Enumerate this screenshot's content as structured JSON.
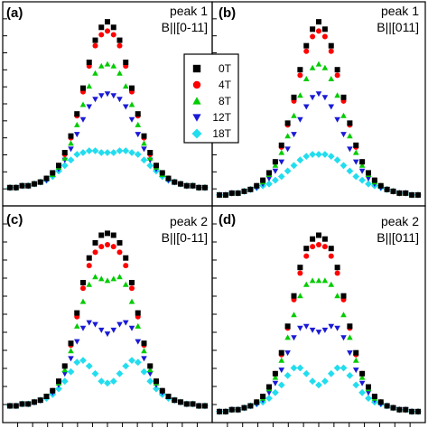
{
  "chart_data": {
    "type": "scatter",
    "layout": "2x2 panels with shared legend",
    "legend": {
      "placement": "center-top",
      "entries": [
        "0T",
        "4T",
        "8T",
        "12T",
        "18T"
      ]
    },
    "series_style": [
      {
        "name": "0T",
        "color": "#000000",
        "marker": "square"
      },
      {
        "name": "4T",
        "color": "#ff0000",
        "marker": "circle"
      },
      {
        "name": "8T",
        "color": "#00cc00",
        "marker": "triangle-up"
      },
      {
        "name": "12T",
        "color": "#1a1ad6",
        "marker": "triangle-down"
      },
      {
        "name": "18T",
        "color": "#22ddee",
        "marker": "diamond"
      }
    ],
    "x": [
      -16,
      -15,
      -14,
      -13,
      -12,
      -11,
      -10,
      -9,
      -8,
      -7,
      -6,
      -5,
      -4,
      -3,
      -2,
      -1,
      0,
      1,
      2,
      3,
      4,
      5,
      6,
      7,
      8,
      9,
      10,
      11,
      12,
      13,
      14,
      15,
      16
    ],
    "ylim": [
      0,
      1
    ],
    "grid": false,
    "panels": [
      {
        "id": "a",
        "label": "(a)",
        "peak": "peak 1",
        "field": "B||[0-11]",
        "series": [
          {
            "name": "0T",
            "values": [
              0.06,
              0.06,
              0.07,
              0.07,
              0.08,
              0.09,
              0.11,
              0.14,
              0.18,
              0.25,
              0.34,
              0.46,
              0.6,
              0.74,
              0.86,
              0.93,
              0.96,
              0.93,
              0.86,
              0.74,
              0.6,
              0.46,
              0.34,
              0.25,
              0.18,
              0.14,
              0.11,
              0.09,
              0.08,
              0.07,
              0.07,
              0.06,
              0.06
            ]
          },
          {
            "name": "4T",
            "values": [
              0.06,
              0.06,
              0.07,
              0.07,
              0.08,
              0.09,
              0.11,
              0.14,
              0.18,
              0.24,
              0.33,
              0.45,
              0.58,
              0.72,
              0.83,
              0.89,
              0.91,
              0.89,
              0.83,
              0.72,
              0.58,
              0.45,
              0.33,
              0.24,
              0.18,
              0.14,
              0.11,
              0.09,
              0.08,
              0.07,
              0.07,
              0.06,
              0.06
            ]
          },
          {
            "name": "8T",
            "values": [
              0.06,
              0.06,
              0.07,
              0.07,
              0.08,
              0.09,
              0.11,
              0.13,
              0.17,
              0.22,
              0.3,
              0.4,
              0.51,
              0.61,
              0.68,
              0.72,
              0.73,
              0.72,
              0.68,
              0.61,
              0.51,
              0.4,
              0.3,
              0.22,
              0.17,
              0.13,
              0.11,
              0.09,
              0.08,
              0.07,
              0.07,
              0.06,
              0.06
            ]
          },
          {
            "name": "12T",
            "values": [
              0.06,
              0.06,
              0.07,
              0.07,
              0.08,
              0.09,
              0.1,
              0.13,
              0.16,
              0.21,
              0.27,
              0.35,
              0.43,
              0.5,
              0.54,
              0.56,
              0.57,
              0.56,
              0.54,
              0.5,
              0.43,
              0.35,
              0.27,
              0.21,
              0.16,
              0.13,
              0.1,
              0.09,
              0.08,
              0.07,
              0.07,
              0.06,
              0.06
            ]
          },
          {
            "name": "18T",
            "values": [
              0.06,
              0.06,
              0.07,
              0.07,
              0.08,
              0.09,
              0.1,
              0.12,
              0.15,
              0.18,
              0.21,
              0.24,
              0.25,
              0.26,
              0.26,
              0.25,
              0.25,
              0.25,
              0.26,
              0.26,
              0.25,
              0.24,
              0.21,
              0.18,
              0.15,
              0.12,
              0.1,
              0.09,
              0.08,
              0.07,
              0.07,
              0.06,
              0.06
            ]
          }
        ]
      },
      {
        "id": "b",
        "label": "(b)",
        "peak": "peak 1",
        "field": "B||[011]",
        "series": [
          {
            "name": "0T",
            "values": [
              0.02,
              0.02,
              0.03,
              0.03,
              0.04,
              0.05,
              0.07,
              0.1,
              0.14,
              0.2,
              0.29,
              0.41,
              0.55,
              0.7,
              0.83,
              0.92,
              0.96,
              0.92,
              0.83,
              0.7,
              0.55,
              0.41,
              0.29,
              0.2,
              0.14,
              0.1,
              0.07,
              0.05,
              0.04,
              0.03,
              0.03,
              0.02,
              0.02
            ]
          },
          {
            "name": "4T",
            "values": [
              0.02,
              0.02,
              0.03,
              0.03,
              0.04,
              0.05,
              0.07,
              0.1,
              0.14,
              0.2,
              0.28,
              0.4,
              0.53,
              0.67,
              0.8,
              0.88,
              0.91,
              0.88,
              0.8,
              0.67,
              0.53,
              0.4,
              0.28,
              0.2,
              0.14,
              0.1,
              0.07,
              0.05,
              0.04,
              0.03,
              0.03,
              0.02,
              0.02
            ]
          },
          {
            "name": "8T",
            "values": [
              0.02,
              0.02,
              0.03,
              0.03,
              0.04,
              0.05,
              0.07,
              0.09,
              0.13,
              0.18,
              0.25,
              0.34,
              0.45,
              0.56,
              0.65,
              0.71,
              0.73,
              0.71,
              0.65,
              0.56,
              0.45,
              0.34,
              0.25,
              0.18,
              0.13,
              0.09,
              0.07,
              0.05,
              0.04,
              0.03,
              0.03,
              0.02,
              0.02
            ]
          },
          {
            "name": "12T",
            "values": [
              0.02,
              0.02,
              0.03,
              0.03,
              0.04,
              0.05,
              0.06,
              0.08,
              0.11,
              0.15,
              0.2,
              0.27,
              0.35,
              0.43,
              0.5,
              0.55,
              0.57,
              0.55,
              0.5,
              0.43,
              0.35,
              0.27,
              0.2,
              0.15,
              0.11,
              0.08,
              0.06,
              0.05,
              0.04,
              0.03,
              0.03,
              0.02,
              0.02
            ]
          },
          {
            "name": "18T",
            "values": [
              0.02,
              0.02,
              0.03,
              0.03,
              0.04,
              0.05,
              0.06,
              0.07,
              0.08,
              0.1,
              0.12,
              0.15,
              0.18,
              0.21,
              0.23,
              0.24,
              0.24,
              0.24,
              0.23,
              0.21,
              0.18,
              0.15,
              0.12,
              0.1,
              0.08,
              0.07,
              0.06,
              0.05,
              0.04,
              0.03,
              0.03,
              0.02,
              0.02
            ]
          }
        ]
      },
      {
        "id": "c",
        "label": "(c)",
        "peak": "peak 2",
        "field": "B||[0-11]",
        "series": [
          {
            "name": "0T",
            "values": [
              0.05,
              0.05,
              0.06,
              0.06,
              0.07,
              0.08,
              0.1,
              0.13,
              0.18,
              0.26,
              0.38,
              0.54,
              0.7,
              0.83,
              0.91,
              0.95,
              0.96,
              0.95,
              0.91,
              0.83,
              0.7,
              0.54,
              0.38,
              0.26,
              0.18,
              0.13,
              0.1,
              0.08,
              0.07,
              0.06,
              0.06,
              0.05,
              0.05
            ]
          },
          {
            "name": "4T",
            "values": [
              0.05,
              0.05,
              0.06,
              0.06,
              0.07,
              0.08,
              0.1,
              0.13,
              0.18,
              0.26,
              0.37,
              0.52,
              0.67,
              0.79,
              0.86,
              0.89,
              0.9,
              0.89,
              0.86,
              0.79,
              0.67,
              0.52,
              0.37,
              0.26,
              0.18,
              0.13,
              0.1,
              0.08,
              0.07,
              0.06,
              0.06,
              0.05,
              0.05
            ]
          },
          {
            "name": "8T",
            "values": [
              0.05,
              0.05,
              0.06,
              0.06,
              0.07,
              0.08,
              0.1,
              0.13,
              0.17,
              0.24,
              0.34,
              0.47,
              0.6,
              0.69,
              0.73,
              0.72,
              0.71,
              0.72,
              0.73,
              0.69,
              0.6,
              0.47,
              0.34,
              0.24,
              0.17,
              0.13,
              0.1,
              0.08,
              0.07,
              0.06,
              0.06,
              0.05,
              0.05
            ]
          },
          {
            "name": "12T",
            "values": [
              0.05,
              0.05,
              0.06,
              0.06,
              0.07,
              0.08,
              0.1,
              0.12,
              0.16,
              0.22,
              0.3,
              0.39,
              0.46,
              0.49,
              0.48,
              0.45,
              0.43,
              0.45,
              0.48,
              0.49,
              0.46,
              0.39,
              0.3,
              0.22,
              0.16,
              0.12,
              0.1,
              0.08,
              0.07,
              0.06,
              0.06,
              0.05,
              0.05
            ]
          },
          {
            "name": "18T",
            "values": [
              0.05,
              0.05,
              0.06,
              0.06,
              0.07,
              0.08,
              0.09,
              0.11,
              0.14,
              0.18,
              0.23,
              0.28,
              0.29,
              0.26,
              0.22,
              0.18,
              0.17,
              0.18,
              0.22,
              0.26,
              0.29,
              0.28,
              0.23,
              0.18,
              0.14,
              0.11,
              0.09,
              0.08,
              0.07,
              0.06,
              0.06,
              0.05,
              0.05
            ]
          }
        ]
      },
      {
        "id": "d",
        "label": "(d)",
        "peak": "peak 2",
        "field": "B||[011]",
        "series": [
          {
            "name": "0T",
            "values": [
              0.02,
              0.02,
              0.03,
              0.03,
              0.04,
              0.05,
              0.07,
              0.1,
              0.15,
              0.22,
              0.33,
              0.47,
              0.63,
              0.78,
              0.88,
              0.93,
              0.95,
              0.93,
              0.88,
              0.78,
              0.63,
              0.47,
              0.33,
              0.22,
              0.15,
              0.1,
              0.07,
              0.05,
              0.04,
              0.03,
              0.03,
              0.02,
              0.02
            ]
          },
          {
            "name": "4T",
            "values": [
              0.02,
              0.02,
              0.03,
              0.03,
              0.04,
              0.05,
              0.07,
              0.1,
              0.15,
              0.22,
              0.32,
              0.46,
              0.61,
              0.75,
              0.84,
              0.89,
              0.9,
              0.89,
              0.84,
              0.75,
              0.61,
              0.46,
              0.32,
              0.22,
              0.15,
              0.1,
              0.07,
              0.05,
              0.04,
              0.03,
              0.03,
              0.02,
              0.02
            ]
          },
          {
            "name": "8T",
            "values": [
              0.02,
              0.02,
              0.03,
              0.03,
              0.04,
              0.05,
              0.07,
              0.09,
              0.14,
              0.2,
              0.29,
              0.41,
              0.53,
              0.63,
              0.69,
              0.71,
              0.71,
              0.71,
              0.69,
              0.63,
              0.53,
              0.41,
              0.29,
              0.2,
              0.14,
              0.09,
              0.07,
              0.05,
              0.04,
              0.03,
              0.03,
              0.02,
              0.02
            ]
          },
          {
            "name": "12T",
            "values": [
              0.02,
              0.02,
              0.03,
              0.03,
              0.04,
              0.05,
              0.06,
              0.08,
              0.12,
              0.17,
              0.24,
              0.33,
              0.41,
              0.46,
              0.47,
              0.45,
              0.44,
              0.45,
              0.47,
              0.46,
              0.41,
              0.33,
              0.24,
              0.17,
              0.12,
              0.08,
              0.06,
              0.05,
              0.04,
              0.03,
              0.03,
              0.02,
              0.02
            ]
          },
          {
            "name": "18T",
            "values": [
              0.02,
              0.02,
              0.03,
              0.03,
              0.04,
              0.05,
              0.06,
              0.07,
              0.09,
              0.12,
              0.16,
              0.21,
              0.25,
              0.25,
              0.22,
              0.18,
              0.16,
              0.18,
              0.22,
              0.25,
              0.25,
              0.21,
              0.16,
              0.12,
              0.09,
              0.07,
              0.06,
              0.05,
              0.04,
              0.03,
              0.03,
              0.02,
              0.02
            ]
          }
        ]
      }
    ]
  }
}
